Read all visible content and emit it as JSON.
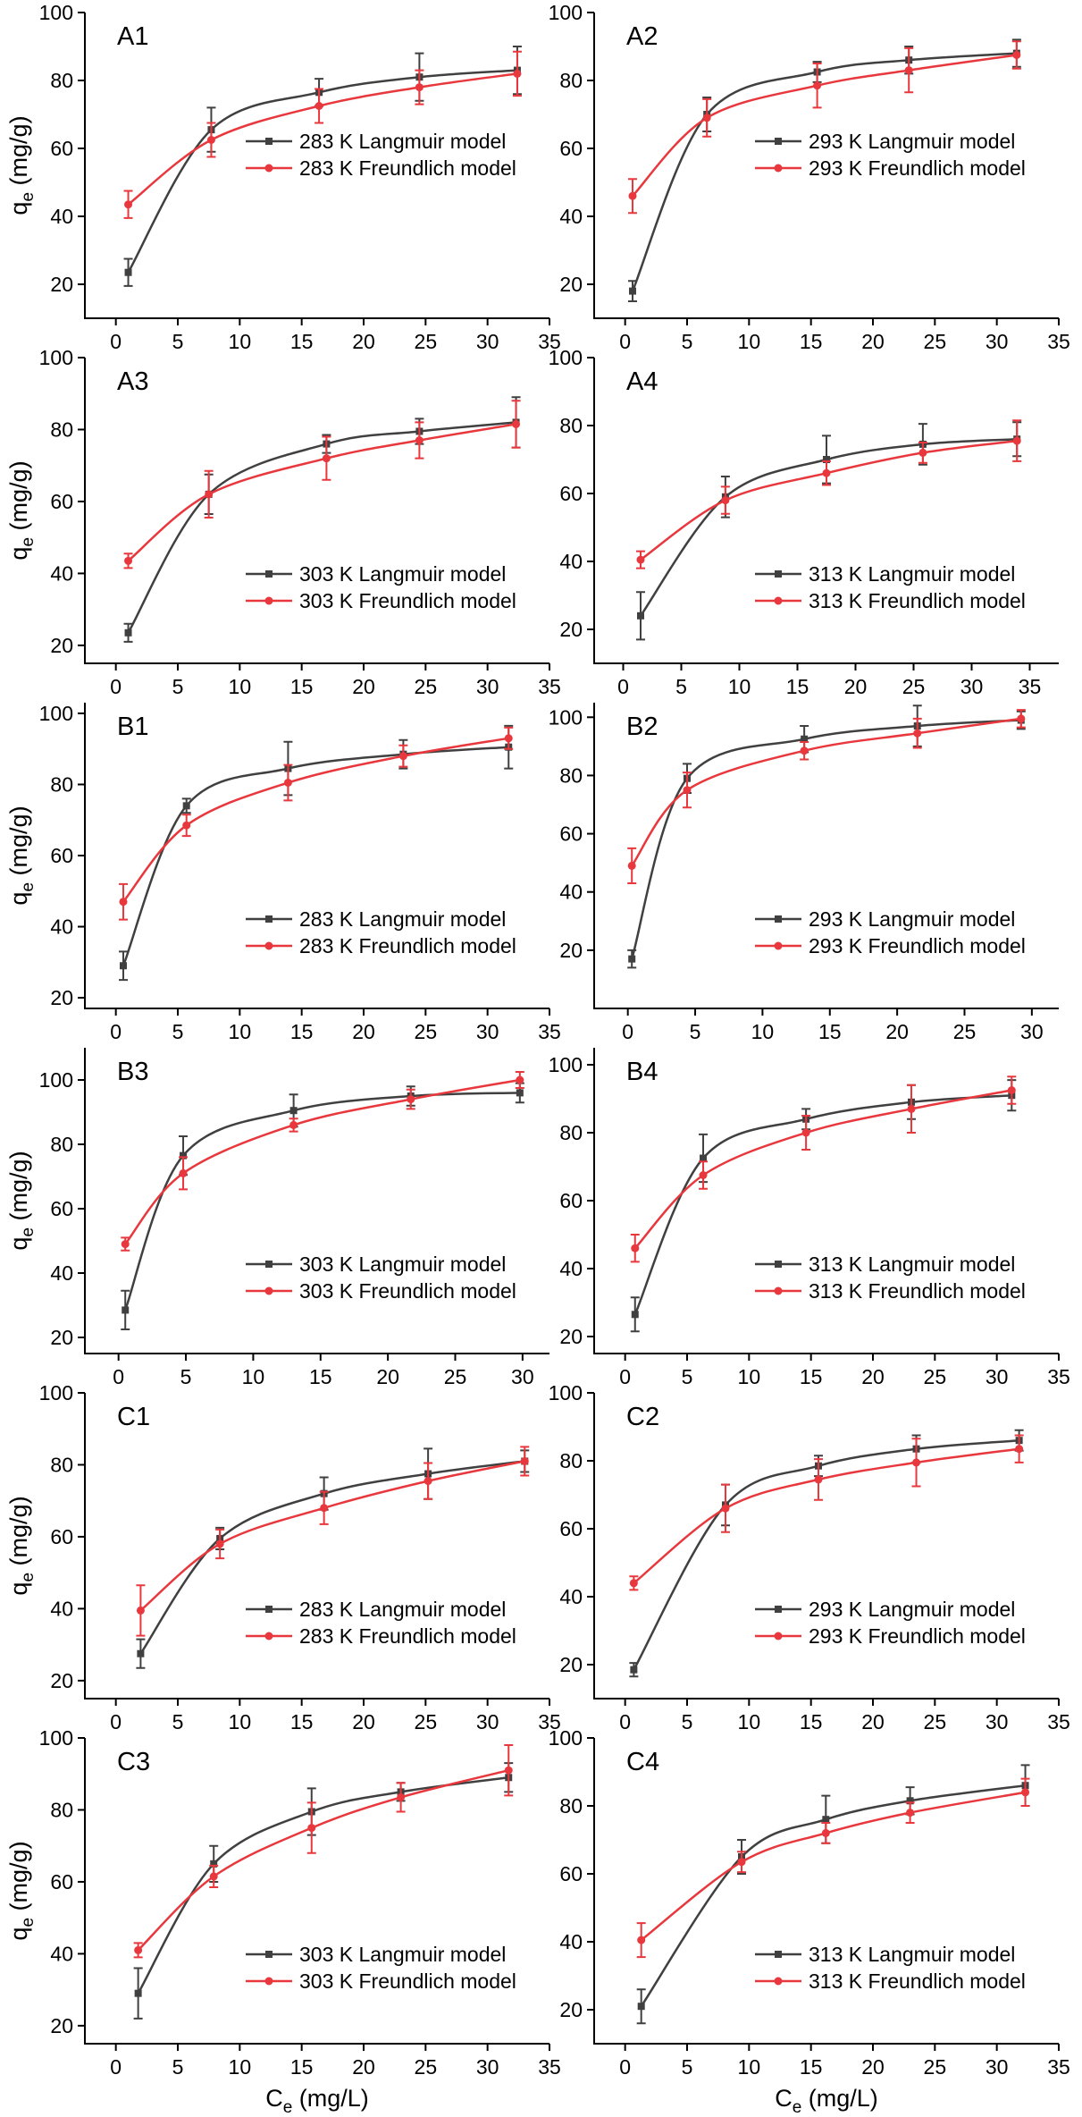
{
  "style": {
    "colors": {
      "langmuir": "#404040",
      "freundlich": "#e8383d"
    }
  },
  "chart_data": [
    {
      "type": "line",
      "panel": "A1",
      "ylabel": "qe (mg/g)",
      "xlabel": "",
      "xlim": [
        -2.5,
        35
      ],
      "xticks": [
        0,
        5,
        10,
        15,
        20,
        25,
        30,
        35
      ],
      "ylim": [
        10,
        100
      ],
      "yticks": [
        20,
        40,
        60,
        80,
        100
      ],
      "legend_position": "center-right",
      "series": [
        {
          "name": "283 K Langmuir model",
          "model": "langmuir",
          "x": [
            1.0,
            7.7,
            16.4,
            24.5,
            32.4
          ],
          "y": [
            23.5,
            65.5,
            76.5,
            81.0,
            83.0
          ],
          "err": [
            4,
            6.5,
            4,
            7,
            7
          ]
        },
        {
          "name": "283 K Freundlich model",
          "model": "freundlich",
          "x": [
            1.0,
            7.7,
            16.4,
            24.5,
            32.4
          ],
          "y": [
            43.5,
            62.5,
            72.5,
            78.0,
            82.0
          ],
          "err": [
            4,
            5,
            5,
            5,
            6.5
          ]
        }
      ]
    },
    {
      "type": "line",
      "panel": "A2",
      "ylabel": "",
      "xlabel": "",
      "xlim": [
        -2.5,
        35
      ],
      "xticks": [
        0,
        5,
        10,
        15,
        20,
        25,
        30,
        35
      ],
      "ylim": [
        10,
        100
      ],
      "yticks": [
        20,
        40,
        60,
        80,
        100
      ],
      "legend_position": "center-right",
      "series": [
        {
          "name": "293 K Langmuir model",
          "model": "langmuir",
          "x": [
            0.6,
            6.6,
            15.5,
            22.9,
            31.6
          ],
          "y": [
            18.0,
            70.0,
            82.5,
            86.0,
            88.0
          ],
          "err": [
            3,
            5,
            3,
            4,
            4
          ]
        },
        {
          "name": "293 K Freundlich model",
          "model": "freundlich",
          "x": [
            0.6,
            6.6,
            15.5,
            22.9,
            31.6
          ],
          "y": [
            46.0,
            69.0,
            78.5,
            83.0,
            87.5
          ],
          "err": [
            5,
            5.5,
            6.5,
            6.5,
            4
          ]
        }
      ]
    },
    {
      "type": "line",
      "panel": "A3",
      "ylabel": "qe (mg/g)",
      "xlabel": "",
      "xlim": [
        -2.5,
        35
      ],
      "xticks": [
        0,
        5,
        10,
        15,
        20,
        25,
        30,
        35
      ],
      "ylim": [
        15,
        100
      ],
      "yticks": [
        20,
        40,
        60,
        80,
        100
      ],
      "legend_position": "lower-right",
      "series": [
        {
          "name": "303 K Langmuir model",
          "model": "langmuir",
          "x": [
            1.0,
            7.5,
            17.0,
            24.5,
            32.3
          ],
          "y": [
            23.5,
            62.0,
            76.0,
            79.5,
            82.0
          ],
          "err": [
            2.5,
            5.5,
            2.5,
            3.5,
            7
          ]
        },
        {
          "name": "303 K Freundlich model",
          "model": "freundlich",
          "x": [
            1.0,
            7.5,
            17.0,
            24.5,
            32.3
          ],
          "y": [
            43.5,
            62.0,
            72.0,
            77.0,
            81.5
          ],
          "err": [
            2,
            6.5,
            6,
            5,
            6.5
          ]
        }
      ]
    },
    {
      "type": "line",
      "panel": "A4",
      "ylabel": "",
      "xlabel": "",
      "xlim": [
        -2.5,
        37.5
      ],
      "xticks": [
        0,
        5,
        10,
        15,
        20,
        25,
        30,
        35
      ],
      "ylim": [
        10,
        100
      ],
      "yticks": [
        20,
        40,
        60,
        80,
        100
      ],
      "legend_position": "lower-right",
      "series": [
        {
          "name": "313 K Langmuir model",
          "model": "langmuir",
          "x": [
            1.5,
            8.8,
            17.5,
            25.8,
            33.9
          ],
          "y": [
            24.0,
            59.0,
            70.0,
            74.5,
            76.0
          ],
          "err": [
            7,
            6,
            7,
            6,
            5
          ]
        },
        {
          "name": "313 K Freundlich model",
          "model": "freundlich",
          "x": [
            1.5,
            8.8,
            17.5,
            25.8,
            33.9
          ],
          "y": [
            40.5,
            58.0,
            66.0,
            72.0,
            75.5
          ],
          "err": [
            2.5,
            4,
            3.5,
            3,
            6
          ]
        }
      ]
    },
    {
      "type": "line",
      "panel": "B1",
      "ylabel": "qe (mg/g)",
      "xlabel": "",
      "xlim": [
        -2.5,
        35
      ],
      "xticks": [
        0,
        5,
        10,
        15,
        20,
        25,
        30,
        35
      ],
      "ylim": [
        17,
        103
      ],
      "yticks": [
        20,
        40,
        60,
        80,
        100
      ],
      "legend_position": "lower-right",
      "series": [
        {
          "name": "283 K Langmuir model",
          "model": "langmuir",
          "x": [
            0.6,
            5.7,
            13.9,
            23.2,
            31.7
          ],
          "y": [
            29.0,
            74.0,
            84.5,
            88.5,
            90.5
          ],
          "err": [
            4,
            2,
            7.5,
            4,
            6
          ]
        },
        {
          "name": "283 K Freundlich model",
          "model": "freundlich",
          "x": [
            0.6,
            5.7,
            13.9,
            23.2,
            31.7
          ],
          "y": [
            47.0,
            68.5,
            80.5,
            88.0,
            93.0
          ],
          "err": [
            5,
            3,
            5,
            3,
            3
          ]
        }
      ]
    },
    {
      "type": "line",
      "panel": "B2",
      "ylabel": "",
      "xlabel": "",
      "xlim": [
        -2.5,
        32
      ],
      "xticks": [
        0,
        5,
        10,
        15,
        20,
        25,
        30
      ],
      "ylim": [
        0,
        105
      ],
      "yticks": [
        20,
        40,
        60,
        80,
        100
      ],
      "legend_position": "lower-right",
      "series": [
        {
          "name": "293 K Langmuir model",
          "model": "langmuir",
          "x": [
            0.3,
            4.4,
            13.1,
            21.5,
            29.2
          ],
          "y": [
            17.0,
            79.0,
            92.5,
            97.0,
            99.0
          ],
          "err": [
            3,
            5,
            4.5,
            7,
            3
          ]
        },
        {
          "name": "293 K Freundlich model",
          "model": "freundlich",
          "x": [
            0.3,
            4.4,
            13.1,
            21.5,
            29.2
          ],
          "y": [
            49.0,
            75.0,
            88.5,
            94.5,
            99.5
          ],
          "err": [
            6,
            6,
            3,
            5,
            3
          ]
        }
      ]
    },
    {
      "type": "line",
      "panel": "B3",
      "ylabel": "qe (mg/g)",
      "xlabel": "",
      "xlim": [
        -2.5,
        32
      ],
      "xticks": [
        0,
        5,
        10,
        15,
        20,
        25,
        30
      ],
      "ylim": [
        15,
        110
      ],
      "yticks": [
        20,
        40,
        60,
        80,
        100
      ],
      "legend_position": "lower-right",
      "series": [
        {
          "name": "303 K Langmuir model",
          "model": "langmuir",
          "x": [
            0.5,
            4.8,
            13.0,
            21.7,
            29.8
          ],
          "y": [
            28.5,
            76.5,
            90.5,
            95.0,
            96.0
          ],
          "err": [
            6,
            6,
            5,
            3,
            3
          ]
        },
        {
          "name": "303 K Freundlich model",
          "model": "freundlich",
          "x": [
            0.5,
            4.8,
            13.0,
            21.7,
            29.8
          ],
          "y": [
            49.0,
            71.0,
            86.0,
            94.0,
            100.0
          ],
          "err": [
            2,
            5,
            2,
            3,
            2.5
          ]
        }
      ]
    },
    {
      "type": "line",
      "panel": "B4",
      "ylabel": "",
      "xlabel": "",
      "xlim": [
        -2.5,
        35
      ],
      "xticks": [
        0,
        5,
        10,
        15,
        20,
        25,
        30,
        35
      ],
      "ylim": [
        15,
        105
      ],
      "yticks": [
        20,
        40,
        60,
        80,
        100
      ],
      "legend_position": "lower-right",
      "series": [
        {
          "name": "313 K Langmuir model",
          "model": "langmuir",
          "x": [
            0.8,
            6.3,
            14.6,
            23.1,
            31.2
          ],
          "y": [
            26.5,
            72.5,
            84.0,
            89.0,
            91.0
          ],
          "err": [
            5,
            7,
            3,
            5,
            4.5
          ]
        },
        {
          "name": "313 K Freundlich model",
          "model": "freundlich",
          "x": [
            0.8,
            6.3,
            14.6,
            23.1,
            31.2
          ],
          "y": [
            46.0,
            67.5,
            80.0,
            87.0,
            92.5
          ],
          "err": [
            4,
            4,
            5,
            7,
            4
          ]
        }
      ]
    },
    {
      "type": "line",
      "panel": "C1",
      "ylabel": "qe (mg/g)",
      "xlabel": "",
      "xlim": [
        -2.5,
        35
      ],
      "xticks": [
        0,
        5,
        10,
        15,
        20,
        25,
        30,
        35
      ],
      "ylim": [
        15,
        100
      ],
      "yticks": [
        20,
        40,
        60,
        80,
        100
      ],
      "legend_position": "lower-right",
      "series": [
        {
          "name": "283 K Langmuir model",
          "model": "langmuir",
          "x": [
            2.0,
            8.4,
            16.8,
            25.2,
            33.0
          ],
          "y": [
            27.5,
            59.5,
            72.0,
            77.5,
            81.0
          ],
          "err": [
            4,
            3,
            4.5,
            7,
            3
          ]
        },
        {
          "name": "283 K Freundlich model",
          "model": "freundlich",
          "x": [
            2.0,
            8.4,
            16.8,
            25.2,
            33.0
          ],
          "y": [
            39.5,
            58.0,
            68.0,
            75.5,
            81.0
          ],
          "err": [
            7,
            4,
            4.5,
            5,
            4
          ]
        }
      ]
    },
    {
      "type": "line",
      "panel": "C2",
      "ylabel": "",
      "xlabel": "",
      "xlim": [
        -2.5,
        35
      ],
      "xticks": [
        0,
        5,
        10,
        15,
        20,
        25,
        30,
        35
      ],
      "ylim": [
        10,
        100
      ],
      "yticks": [
        20,
        40,
        60,
        80,
        100
      ],
      "legend_position": "lower-right",
      "series": [
        {
          "name": "293 K Langmuir model",
          "model": "langmuir",
          "x": [
            0.7,
            8.1,
            15.6,
            23.5,
            31.8
          ],
          "y": [
            18.5,
            67.0,
            78.5,
            83.5,
            86.0
          ],
          "err": [
            2,
            6,
            3,
            4,
            3
          ]
        },
        {
          "name": "293 K Freundlich model",
          "model": "freundlich",
          "x": [
            0.7,
            8.1,
            15.6,
            23.5,
            31.8
          ],
          "y": [
            44.0,
            66.0,
            74.5,
            79.5,
            83.5
          ],
          "err": [
            2,
            7,
            6,
            7,
            4
          ]
        }
      ]
    },
    {
      "type": "line",
      "panel": "C3",
      "ylabel": "qe (mg/g)",
      "xlabel": "Ce (mg/L)",
      "xlim": [
        -2.5,
        35
      ],
      "xticks": [
        0,
        5,
        10,
        15,
        20,
        25,
        30,
        35
      ],
      "ylim": [
        15,
        100
      ],
      "yticks": [
        20,
        40,
        60,
        80,
        100
      ],
      "legend_position": "lower-right",
      "series": [
        {
          "name": "303 K Langmuir model",
          "model": "langmuir",
          "x": [
            1.8,
            7.9,
            15.8,
            23.0,
            31.7
          ],
          "y": [
            29.0,
            65.0,
            79.5,
            85.0,
            89.0
          ],
          "err": [
            7,
            5,
            6.5,
            2.5,
            4
          ]
        },
        {
          "name": "303 K Freundlich model",
          "model": "freundlich",
          "x": [
            1.8,
            7.9,
            15.8,
            23.0,
            31.7
          ],
          "y": [
            41.0,
            61.5,
            75.0,
            83.5,
            91.0
          ],
          "err": [
            2,
            3,
            7,
            4,
            7
          ]
        }
      ]
    },
    {
      "type": "line",
      "panel": "C4",
      "ylabel": "",
      "xlabel": "Ce (mg/L)",
      "xlim": [
        -2.5,
        35
      ],
      "xticks": [
        0,
        5,
        10,
        15,
        20,
        25,
        30,
        35
      ],
      "ylim": [
        10,
        100
      ],
      "yticks": [
        20,
        40,
        60,
        80,
        100
      ],
      "legend_position": "lower-right",
      "series": [
        {
          "name": "313 K Langmuir model",
          "model": "langmuir",
          "x": [
            1.3,
            9.4,
            16.2,
            23.0,
            32.3
          ],
          "y": [
            21.0,
            65.0,
            76.0,
            81.5,
            86.0
          ],
          "err": [
            5,
            5,
            7,
            4,
            6
          ]
        },
        {
          "name": "313 K Freundlich model",
          "model": "freundlich",
          "x": [
            1.3,
            9.4,
            16.2,
            23.0,
            32.3
          ],
          "y": [
            40.5,
            63.5,
            72.0,
            78.0,
            84.0
          ],
          "err": [
            5,
            3,
            3,
            3,
            4
          ]
        }
      ]
    }
  ]
}
